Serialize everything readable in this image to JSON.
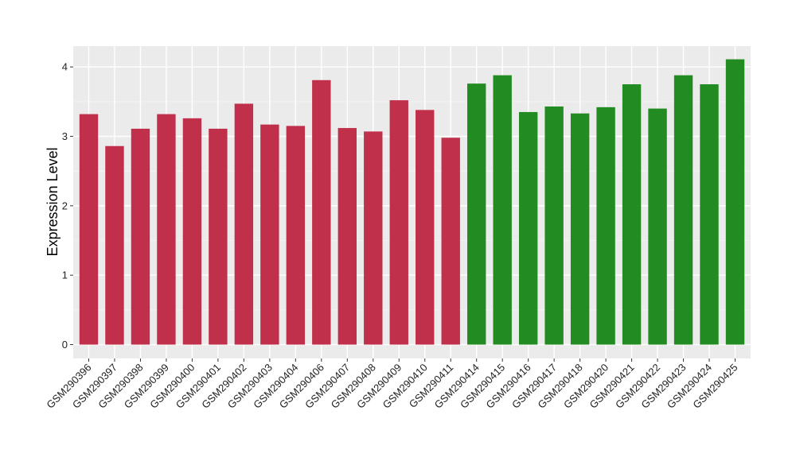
{
  "chart_data": {
    "type": "bar",
    "title": "",
    "xlabel": "",
    "ylabel": "Expression Level",
    "ylim": [
      -0.2,
      4.3
    ],
    "yticks": [
      0,
      1,
      2,
      3,
      4
    ],
    "grid": true,
    "legend": "none",
    "categories": [
      "GSM290396",
      "GSM290397",
      "GSM290398",
      "GSM290399",
      "GSM290400",
      "GSM290401",
      "GSM290402",
      "GSM290403",
      "GSM290404",
      "GSM290406",
      "GSM290407",
      "GSM290408",
      "GSM290409",
      "GSM290410",
      "GSM290411",
      "GSM290414",
      "GSM290415",
      "GSM290416",
      "GSM290417",
      "GSM290418",
      "GSM290420",
      "GSM290421",
      "GSM290422",
      "GSM290423",
      "GSM290424",
      "GSM290425"
    ],
    "values": [
      3.32,
      2.86,
      3.11,
      3.32,
      3.26,
      3.11,
      3.47,
      3.17,
      3.15,
      3.81,
      3.12,
      3.07,
      3.52,
      3.38,
      2.98,
      3.76,
      3.88,
      3.35,
      3.43,
      3.33,
      3.42,
      3.75,
      3.4,
      3.88,
      3.75,
      4.11
    ],
    "groups": [
      "red",
      "red",
      "red",
      "red",
      "red",
      "red",
      "red",
      "red",
      "red",
      "red",
      "red",
      "red",
      "red",
      "red",
      "red",
      "green",
      "green",
      "green",
      "green",
      "green",
      "green",
      "green",
      "green",
      "green",
      "green",
      "green"
    ],
    "colors": {
      "red": "#c1304a",
      "green": "#228b22",
      "panel": "#ebebeb",
      "grid_major": "#ffffff",
      "grid_minor": "#f5f5f5"
    }
  }
}
